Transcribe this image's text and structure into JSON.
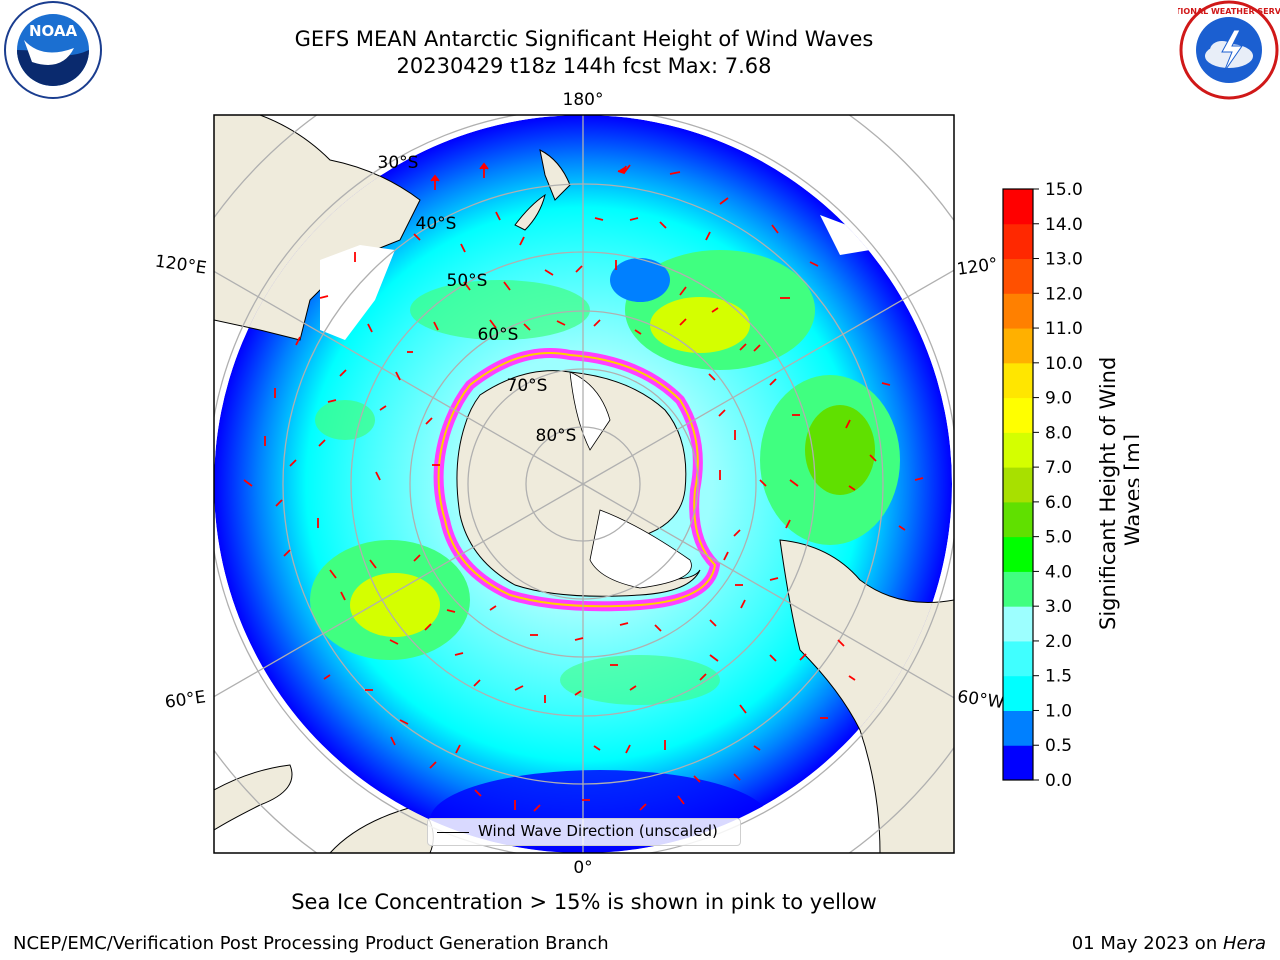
{
  "title": {
    "line1": "GEFS MEAN Antarctic Significant Height of Wind Waves",
    "line2": "20230429 t18z 144h fcst   Max: 7.68"
  },
  "map": {
    "projection": "south-polar-stereographic",
    "longitude_labels": [
      "180°",
      "120°E",
      "120°",
      "60°E",
      "60°W",
      "0°"
    ],
    "latitude_labels": [
      "30°S",
      "40°S",
      "50°S",
      "60°S",
      "70°S",
      "80°S"
    ],
    "legend_text": "Wind Wave Direction (unscaled)",
    "colors": {
      "land": "#efebdc",
      "ice_shelf": "#ffffff",
      "arrow": "#ff0000",
      "grid": "#b0b0b0"
    }
  },
  "colorbar": {
    "label": "Significant Height of Wind Waves [m]",
    "tick_labels": [
      "0.0",
      "0.5",
      "1.0",
      "1.5",
      "2.0",
      "3.0",
      "4.0",
      "5.0",
      "6.0",
      "7.0",
      "8.0",
      "9.0",
      "10.0",
      "11.0",
      "12.0",
      "13.0",
      "14.0",
      "15.0"
    ],
    "colors": [
      "#0000ff",
      "#0080ff",
      "#00ffff",
      "#40ffff",
      "#9dffff",
      "#40ff80",
      "#00ff00",
      "#60e000",
      "#a8e000",
      "#d4ff00",
      "#ffff00",
      "#ffe600",
      "#ffb000",
      "#ff8000",
      "#ff5000",
      "#ff2800",
      "#ff0000"
    ]
  },
  "annotations": {
    "sea_ice_note": "Sea Ice Concentration > 15% is shown in pink to yellow"
  },
  "footer": {
    "left": "NCEP/EMC/Verification Post Processing Product Generation Branch",
    "date": "01 May 2023 on ",
    "host": "Hera"
  },
  "logos": {
    "left": {
      "icon": "noaa-logo",
      "text": "NOAA"
    },
    "right": {
      "icon": "nws-logo",
      "text": "NATIONAL WEATHER SERVICE"
    }
  }
}
